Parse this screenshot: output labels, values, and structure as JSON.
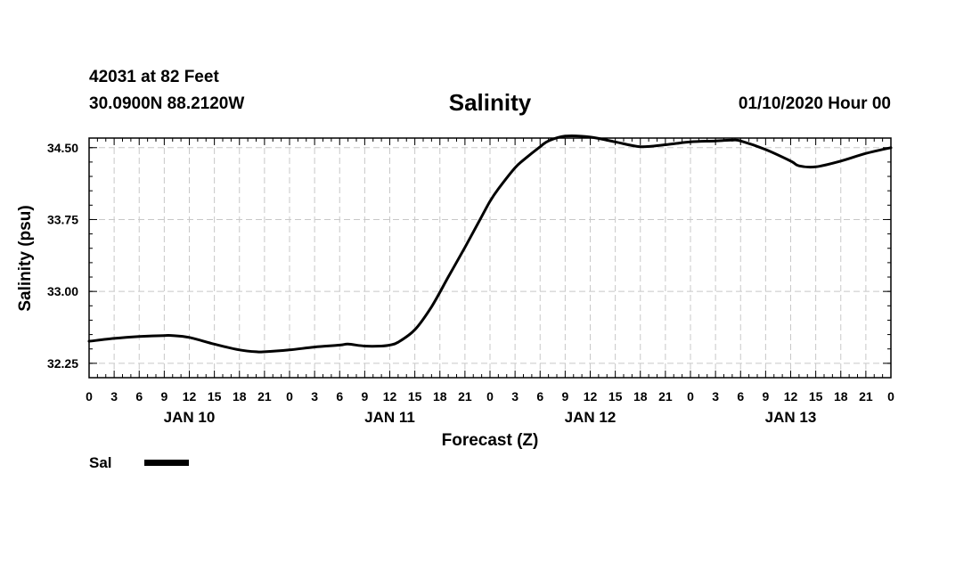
{
  "header": {
    "station": "42031 at 82 Feet",
    "coords": "30.0900N 88.2120W",
    "title": "Salinity",
    "issued": "01/10/2020 Hour 00"
  },
  "chart_data": {
    "type": "line",
    "title": "Salinity",
    "xlabel": "Forecast (Z)",
    "ylabel": "Salinity (psu)",
    "ylim": [
      32.1,
      34.6
    ],
    "xlim": [
      0,
      96
    ],
    "yticks": [
      32.25,
      33.0,
      33.75,
      34.5
    ],
    "ytick_labels": [
      "32.25",
      "33.00",
      "33.75",
      "34.50"
    ],
    "xticks": [
      0,
      3,
      6,
      9,
      12,
      15,
      18,
      21,
      24,
      27,
      30,
      33,
      36,
      39,
      42,
      45,
      48,
      51,
      54,
      57,
      60,
      63,
      66,
      69,
      72,
      75,
      78,
      81,
      84,
      87,
      90,
      93,
      96
    ],
    "xtick_labels": [
      "0",
      "3",
      "6",
      "9",
      "12",
      "15",
      "18",
      "21",
      "0",
      "3",
      "6",
      "9",
      "12",
      "15",
      "18",
      "21",
      "0",
      "3",
      "6",
      "9",
      "12",
      "15",
      "18",
      "21",
      "0",
      "3",
      "6",
      "9",
      "12",
      "15",
      "18",
      "21",
      "0"
    ],
    "day_labels": [
      {
        "label": "JAN 10",
        "hour": 12
      },
      {
        "label": "JAN 11",
        "hour": 36
      },
      {
        "label": "JAN 12",
        "hour": 60
      },
      {
        "label": "JAN 13",
        "hour": 84
      }
    ],
    "grid": true,
    "legend": {
      "position": "bottom-left",
      "entries": [
        {
          "name": "Sal",
          "color": "#000000"
        }
      ]
    },
    "series": [
      {
        "name": "Sal",
        "color": "#000000",
        "x": [
          0,
          3,
          6,
          9,
          10,
          12,
          15,
          18,
          20,
          21,
          24,
          27,
          30,
          31,
          33,
          35,
          36,
          37,
          39,
          41,
          43,
          45,
          47,
          48,
          49,
          51,
          52,
          54,
          55,
          57,
          60,
          63,
          66,
          69,
          72,
          75,
          77,
          78,
          81,
          84,
          85,
          87,
          90,
          93,
          96
        ],
        "y": [
          32.48,
          32.51,
          32.53,
          32.54,
          32.54,
          32.52,
          32.45,
          32.39,
          32.37,
          32.37,
          32.39,
          32.42,
          32.44,
          32.45,
          32.43,
          32.43,
          32.44,
          32.47,
          32.6,
          32.84,
          33.15,
          33.46,
          33.78,
          33.94,
          34.07,
          34.29,
          34.37,
          34.51,
          34.57,
          34.62,
          34.61,
          34.56,
          34.51,
          34.53,
          34.56,
          34.57,
          34.58,
          34.57,
          34.48,
          34.36,
          34.31,
          34.3,
          34.36,
          34.44,
          34.5
        ]
      }
    ]
  }
}
